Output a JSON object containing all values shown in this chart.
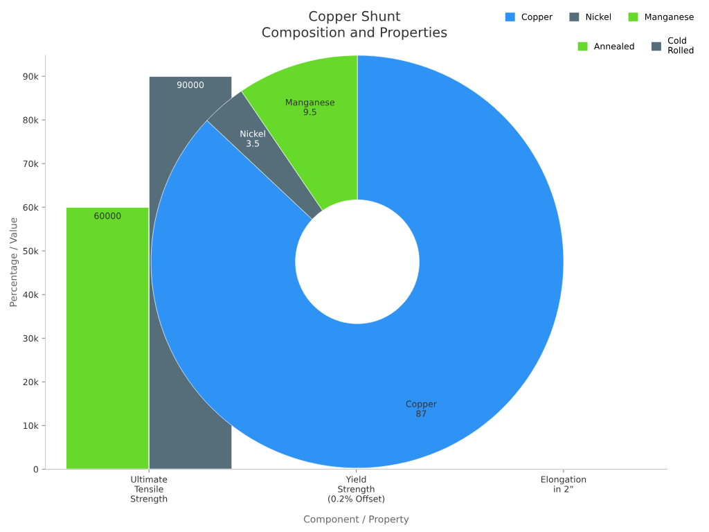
{
  "chart_data": [
    {
      "type": "bar",
      "title": "Copper Shunt\nComposition and Properties",
      "xlabel": "Component / Property",
      "ylabel": "Percentage / Value",
      "categories": [
        "Ultimate\nTensile\nStrength",
        "Yield\nStrength\n(0.2% Offset)",
        "Elongation\nin 2”"
      ],
      "series": [
        {
          "name": "Annealed",
          "color": "#66d92a",
          "values": [
            60000,
            null,
            null
          ]
        },
        {
          "name": "Cold\nRolled",
          "color": "#566e7a",
          "values": [
            90000,
            null,
            null
          ]
        }
      ],
      "ylim": [
        0,
        94800
      ],
      "yticks": [
        0,
        {
          "value": 10000,
          "label": "10k"
        },
        {
          "value": 20000,
          "label": "20k"
        },
        {
          "value": 30000,
          "label": "30k"
        },
        {
          "value": 40000,
          "label": "40k"
        },
        {
          "value": 50000,
          "label": "50k"
        },
        {
          "value": 60000,
          "label": "60k"
        },
        {
          "value": 70000,
          "label": "70k"
        },
        {
          "value": 80000,
          "label": "80k"
        },
        {
          "value": 90000,
          "label": "90k"
        }
      ],
      "data_labels": true,
      "legend": "top right"
    },
    {
      "type": "donut",
      "categories": [
        "Copper",
        "Nickel",
        "Manganese"
      ],
      "values": [
        87,
        3.5,
        9.5
      ],
      "colors": [
        "#2f93f5",
        "#566e7a",
        "#66d92a"
      ],
      "data_labels": true,
      "legend": "top right"
    }
  ]
}
